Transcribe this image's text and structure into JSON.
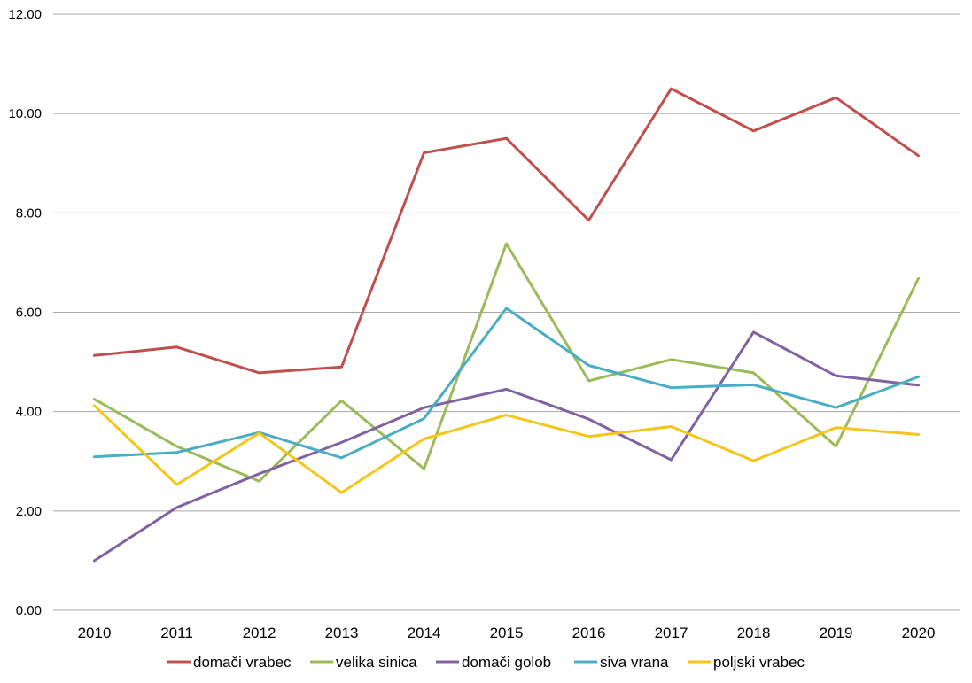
{
  "chart_data": {
    "type": "line",
    "title": "",
    "xlabel": "",
    "ylabel": "",
    "categories": [
      "2010",
      "2011",
      "2012",
      "2013",
      "2014",
      "2015",
      "2016",
      "2017",
      "2018",
      "2019",
      "2020"
    ],
    "ylim": [
      0,
      12
    ],
    "yticks": [
      "0.00",
      "2.00",
      "4.00",
      "6.00",
      "8.00",
      "10.00",
      "12.00"
    ],
    "grid": true,
    "legend_position": "bottom",
    "series": [
      {
        "name": "domači vrabec",
        "color": "#c0504d",
        "values": [
          5.13,
          5.3,
          4.78,
          4.9,
          9.21,
          9.5,
          7.85,
          10.5,
          9.65,
          10.32,
          9.15
        ]
      },
      {
        "name": "velika sinica",
        "color": "#9bbb59",
        "values": [
          4.25,
          3.3,
          2.6,
          4.22,
          2.85,
          7.38,
          4.62,
          5.05,
          4.78,
          3.3,
          6.68
        ]
      },
      {
        "name": "domači golob",
        "color": "#8064a2",
        "values": [
          1.0,
          2.07,
          2.75,
          3.38,
          4.08,
          4.45,
          3.85,
          3.03,
          5.6,
          4.72,
          4.53
        ]
      },
      {
        "name": "siva vrana",
        "color": "#4bacc6",
        "values": [
          3.09,
          3.18,
          3.58,
          3.07,
          3.86,
          6.08,
          4.93,
          4.48,
          4.54,
          4.08,
          4.7
        ]
      },
      {
        "name": "poljski vrabec",
        "color": "#f5c518",
        "values": [
          4.12,
          2.53,
          3.57,
          2.37,
          3.45,
          3.93,
          3.5,
          3.7,
          3.01,
          3.68,
          3.54
        ]
      }
    ]
  }
}
